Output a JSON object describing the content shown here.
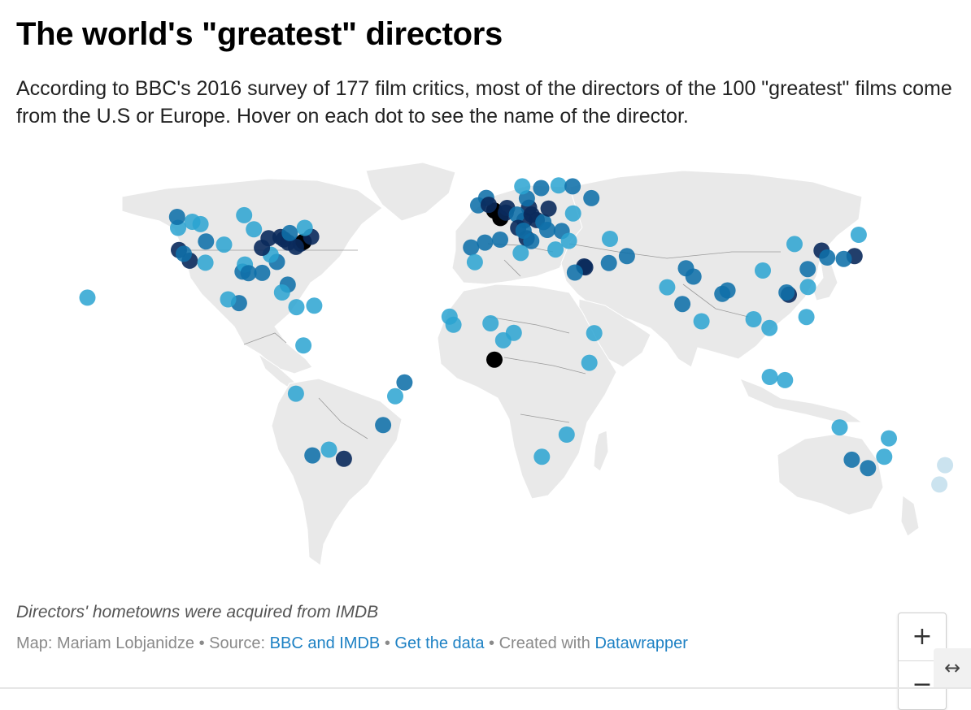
{
  "header": {
    "title": "The world's \"greatest\" directors",
    "description": "According to BBC's 2016 survey of 177 film critics, most of the directors of the 100 \"greatest\" films come from the U.S or Europe. Hover on each dot to see the name of the director."
  },
  "zoom": {
    "in_label": "+",
    "out_label": "−"
  },
  "footer": {
    "notes": "Directors' hometowns were acquired from IMDB",
    "map_credit": "Map: Mariam Lobjanidze",
    "source_prefix": "Source:",
    "source_link": "BBC and IMDB",
    "get_data": "Get the data",
    "created_prefix": "Created with",
    "created_link": "Datawrapper",
    "separator": "•"
  },
  "expand_icon": "↔",
  "colors": {
    "land": "#e9e9e9",
    "border": "#9a9a9a",
    "dot_light": "#2aa3d1",
    "dot_mid": "#0f6fa8",
    "dot_dark": "#0a2a5c",
    "dot_black": "#000000",
    "link": "#1d81c4"
  },
  "map_data": {
    "dot_count_shown": "approx. 177",
    "dots": [
      {
        "lon": -122.4,
        "lat": 37.8,
        "shade": 3
      },
      {
        "lon": -118.2,
        "lat": 34.1,
        "shade": 3
      },
      {
        "lon": -120.5,
        "lat": 36.5,
        "shade": 2
      },
      {
        "lon": -122.7,
        "lat": 45.5,
        "shade": 1
      },
      {
        "lon": -117.2,
        "lat": 47.6,
        "shade": 1
      },
      {
        "lon": -114.0,
        "lat": 46.8,
        "shade": 1
      },
      {
        "lon": -111.9,
        "lat": 40.8,
        "shade": 2
      },
      {
        "lon": -112.1,
        "lat": 33.4,
        "shade": 1
      },
      {
        "lon": -104.9,
        "lat": 39.7,
        "shade": 1
      },
      {
        "lon": -97.7,
        "lat": 30.3,
        "shade": 2
      },
      {
        "lon": -96.8,
        "lat": 32.8,
        "shade": 1
      },
      {
        "lon": -95.4,
        "lat": 29.8,
        "shade": 2
      },
      {
        "lon": -90.1,
        "lat": 29.9,
        "shade": 2
      },
      {
        "lon": -93.3,
        "lat": 45.0,
        "shade": 1
      },
      {
        "lon": -87.6,
        "lat": 41.9,
        "shade": 3
      },
      {
        "lon": -83.0,
        "lat": 42.3,
        "shade": 3
      },
      {
        "lon": -81.7,
        "lat": 41.5,
        "shade": 3
      },
      {
        "lon": -80.0,
        "lat": 40.4,
        "shade": 3
      },
      {
        "lon": -75.2,
        "lat": 40.0,
        "shade": 3
      },
      {
        "lon": -74.0,
        "lat": 40.7,
        "shade": 4
      },
      {
        "lon": -71.1,
        "lat": 42.4,
        "shade": 3
      },
      {
        "lon": -77.0,
        "lat": 38.9,
        "shade": 3
      },
      {
        "lon": -84.4,
        "lat": 33.7,
        "shade": 2
      },
      {
        "lon": -86.8,
        "lat": 36.2,
        "shade": 1
      },
      {
        "lon": -80.2,
        "lat": 25.8,
        "shade": 2
      },
      {
        "lon": -90.2,
        "lat": 38.6,
        "shade": 3
      },
      {
        "lon": -79.4,
        "lat": 43.7,
        "shade": 2
      },
      {
        "lon": -73.6,
        "lat": 45.5,
        "shade": 1
      },
      {
        "lon": -123.1,
        "lat": 49.3,
        "shade": 2
      },
      {
        "lon": -97.1,
        "lat": 49.9,
        "shade": 1
      },
      {
        "lon": -157.9,
        "lat": 21.3,
        "shade": 1
      },
      {
        "lon": -99.1,
        "lat": 19.4,
        "shade": 2
      },
      {
        "lon": -103.3,
        "lat": 20.7,
        "shade": 1
      },
      {
        "lon": -82.4,
        "lat": 23.1,
        "shade": 1
      },
      {
        "lon": -76.8,
        "lat": 18.0,
        "shade": 1
      },
      {
        "lon": -69.9,
        "lat": 18.5,
        "shade": 1
      },
      {
        "lon": -74.1,
        "lat": 4.7,
        "shade": 1
      },
      {
        "lon": -77.0,
        "lat": -12.0,
        "shade": 1
      },
      {
        "lon": -38.5,
        "lat": -12.9,
        "shade": 1
      },
      {
        "lon": -34.9,
        "lat": -8.1,
        "shade": 2
      },
      {
        "lon": -43.2,
        "lat": -22.9,
        "shade": 2
      },
      {
        "lon": -64.2,
        "lat": -31.4,
        "shade": 1
      },
      {
        "lon": -70.6,
        "lat": -33.4,
        "shade": 2
      },
      {
        "lon": -58.4,
        "lat": -34.6,
        "shade": 3
      },
      {
        "lon": -0.1,
        "lat": 51.5,
        "shade": 4
      },
      {
        "lon": 2.3,
        "lat": 48.9,
        "shade": 4
      },
      {
        "lon": -3.2,
        "lat": 55.9,
        "shade": 2
      },
      {
        "lon": -6.3,
        "lat": 53.3,
        "shade": 2
      },
      {
        "lon": -2.2,
        "lat": 53.5,
        "shade": 3
      },
      {
        "lon": 4.9,
        "lat": 52.4,
        "shade": 3
      },
      {
        "lon": 4.4,
        "lat": 50.8,
        "shade": 3
      },
      {
        "lon": 13.4,
        "lat": 52.5,
        "shade": 3
      },
      {
        "lon": 11.6,
        "lat": 48.1,
        "shade": 3
      },
      {
        "lon": 8.7,
        "lat": 50.1,
        "shade": 2
      },
      {
        "lon": 16.4,
        "lat": 48.2,
        "shade": 3
      },
      {
        "lon": 14.4,
        "lat": 50.1,
        "shade": 3
      },
      {
        "lon": 19.0,
        "lat": 47.5,
        "shade": 2
      },
      {
        "lon": 21.0,
        "lat": 52.2,
        "shade": 3
      },
      {
        "lon": 12.5,
        "lat": 41.9,
        "shade": 3
      },
      {
        "lon": 9.2,
        "lat": 45.5,
        "shade": 3
      },
      {
        "lon": 11.3,
        "lat": 44.5,
        "shade": 2
      },
      {
        "lon": 14.3,
        "lat": 40.9,
        "shade": 2
      },
      {
        "lon": -3.7,
        "lat": 40.4,
        "shade": 2
      },
      {
        "lon": 2.2,
        "lat": 41.4,
        "shade": 2
      },
      {
        "lon": -9.1,
        "lat": 38.7,
        "shade": 2
      },
      {
        "lon": 18.1,
        "lat": 59.3,
        "shade": 2
      },
      {
        "lon": 12.6,
        "lat": 55.7,
        "shade": 2
      },
      {
        "lon": 10.8,
        "lat": 59.9,
        "shade": 1
      },
      {
        "lon": 24.9,
        "lat": 60.2,
        "shade": 1
      },
      {
        "lon": 30.3,
        "lat": 59.9,
        "shade": 2
      },
      {
        "lon": 37.6,
        "lat": 55.8,
        "shade": 2
      },
      {
        "lon": 30.5,
        "lat": 50.5,
        "shade": 1
      },
      {
        "lon": 44.8,
        "lat": 41.7,
        "shade": 1
      },
      {
        "lon": 23.7,
        "lat": 38.0,
        "shade": 1
      },
      {
        "lon": 26.1,
        "lat": 44.4,
        "shade": 2
      },
      {
        "lon": 20.5,
        "lat": 44.8,
        "shade": 2
      },
      {
        "lon": 28.9,
        "lat": 41.0,
        "shade": 1
      },
      {
        "lon": 35.2,
        "lat": 31.8,
        "shade": 3
      },
      {
        "lon": 34.8,
        "lat": 32.1,
        "shade": 3
      },
      {
        "lon": 51.4,
        "lat": 35.7,
        "shade": 2
      },
      {
        "lon": 44.4,
        "lat": 33.3,
        "shade": 2
      },
      {
        "lon": 31.2,
        "lat": 30.0,
        "shade": 2
      },
      {
        "lon": -7.6,
        "lat": 33.6,
        "shade": 1
      },
      {
        "lon": 10.2,
        "lat": 36.8,
        "shade": 1
      },
      {
        "lon": -17.4,
        "lat": 14.7,
        "shade": 1
      },
      {
        "lon": -15.9,
        "lat": 11.9,
        "shade": 1
      },
      {
        "lon": -1.5,
        "lat": 12.4,
        "shade": 1
      },
      {
        "lon": 3.4,
        "lat": 6.5,
        "shade": 1
      },
      {
        "lon": 7.5,
        "lat": 9.1,
        "shade": 1
      },
      {
        "lon": 0.0,
        "lat": -0.2,
        "shade": 4
      },
      {
        "lon": 38.7,
        "lat": 9.0,
        "shade": 1
      },
      {
        "lon": 36.8,
        "lat": -1.3,
        "shade": 1
      },
      {
        "lon": 28.0,
        "lat": -26.2,
        "shade": 1
      },
      {
        "lon": 18.4,
        "lat": -33.9,
        "shade": 1
      },
      {
        "lon": 72.9,
        "lat": 19.1,
        "shade": 2
      },
      {
        "lon": 77.2,
        "lat": 28.6,
        "shade": 2
      },
      {
        "lon": 88.4,
        "lat": 22.6,
        "shade": 2
      },
      {
        "lon": 80.3,
        "lat": 13.1,
        "shade": 1
      },
      {
        "lon": 90.4,
        "lat": 23.8,
        "shade": 2
      },
      {
        "lon": 67.0,
        "lat": 24.9,
        "shade": 1
      },
      {
        "lon": 74.3,
        "lat": 31.5,
        "shade": 2
      },
      {
        "lon": 100.5,
        "lat": 13.8,
        "shade": 1
      },
      {
        "lon": 106.7,
        "lat": 10.8,
        "shade": 1
      },
      {
        "lon": 116.4,
        "lat": 39.9,
        "shade": 1
      },
      {
        "lon": 121.5,
        "lat": 31.2,
        "shade": 2
      },
      {
        "lon": 114.2,
        "lat": 22.3,
        "shade": 3
      },
      {
        "lon": 113.3,
        "lat": 23.1,
        "shade": 2
      },
      {
        "lon": 121.6,
        "lat": 25.0,
        "shade": 1
      },
      {
        "lon": 104.1,
        "lat": 30.7,
        "shade": 1
      },
      {
        "lon": 126.9,
        "lat": 37.6,
        "shade": 3
      },
      {
        "lon": 129.1,
        "lat": 35.2,
        "shade": 2
      },
      {
        "lon": 139.7,
        "lat": 35.7,
        "shade": 3
      },
      {
        "lon": 135.5,
        "lat": 34.7,
        "shade": 2
      },
      {
        "lon": 141.3,
        "lat": 43.1,
        "shade": 1
      },
      {
        "lon": 121.0,
        "lat": 14.6,
        "shade": 1
      },
      {
        "lon": 106.8,
        "lat": -6.2,
        "shade": 1
      },
      {
        "lon": 112.7,
        "lat": -7.3,
        "shade": 1
      },
      {
        "lon": 151.2,
        "lat": -33.9,
        "shade": 1
      },
      {
        "lon": 144.9,
        "lat": -37.8,
        "shade": 2
      },
      {
        "lon": 138.6,
        "lat": -34.9,
        "shade": 2
      },
      {
        "lon": 153.0,
        "lat": -27.5,
        "shade": 1
      },
      {
        "lon": 133.9,
        "lat": -23.7,
        "shade": 1
      },
      {
        "lon": 174.8,
        "lat": -36.8,
        "shade": 0
      },
      {
        "lon": 172.6,
        "lat": -43.5,
        "shade": 0
      }
    ]
  }
}
